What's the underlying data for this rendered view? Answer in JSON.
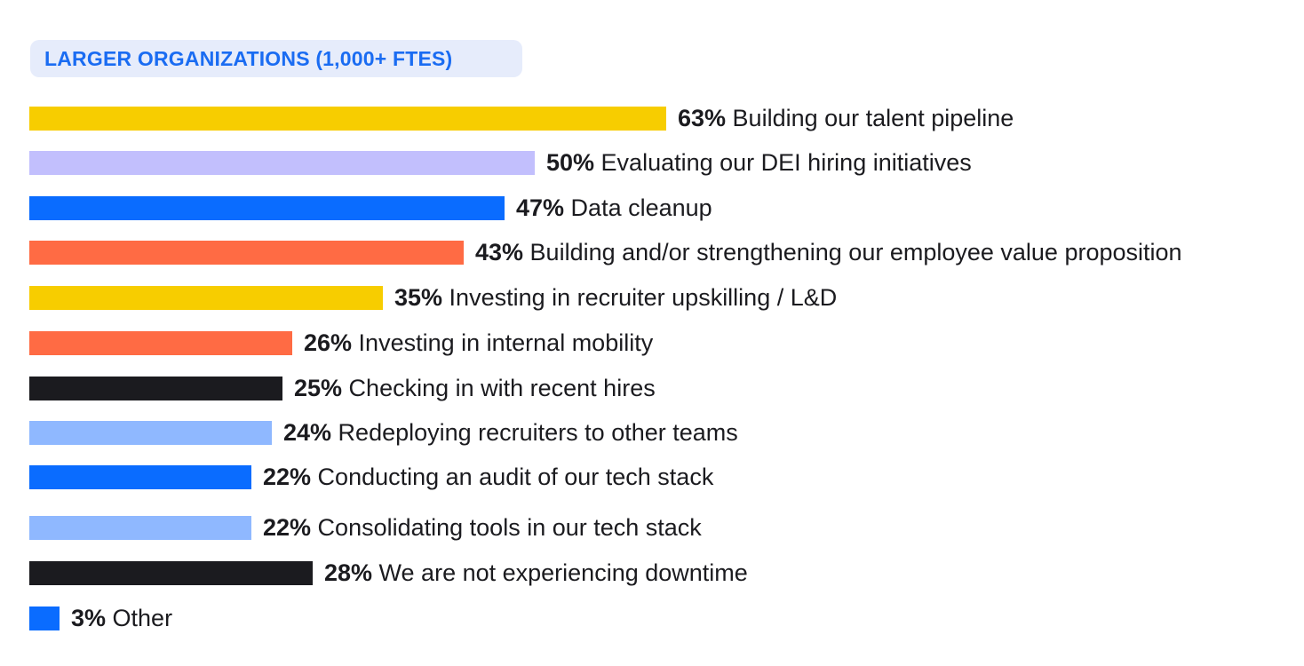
{
  "header": {
    "title": "LARGER ORGANIZATIONS (1,000+ FTES)",
    "background": "#e6ecfb",
    "text_color": "#1a6cf2"
  },
  "chart_data": {
    "type": "bar",
    "orientation": "horizontal",
    "title": "LARGER ORGANIZATIONS (1,000+ FTES)",
    "xlabel": "",
    "ylabel": "",
    "unit": "%",
    "categories": [
      "Building our talent pipeline",
      "Evaluating our DEI hiring initiatives",
      "Data cleanup",
      "Building and/or strengthening our employee value proposition",
      "Investing in recruiter upskilling / L&D",
      "Investing in internal mobility",
      "Checking in with recent hires",
      "Redeploying recruiters to other teams",
      "Conducting an audit of our tech stack",
      "Consolidating tools in our tech stack",
      "We are not experiencing downtime",
      "Other"
    ],
    "values": [
      63,
      50,
      47,
      43,
      35,
      26,
      25,
      24,
      22,
      22,
      28,
      3
    ],
    "value_labels": [
      "63%",
      "50%",
      "47%",
      "43%",
      "35%",
      "26%",
      "25%",
      "24%",
      "22%",
      "22%",
      "28%",
      "3%"
    ],
    "colors": [
      "#f7cd00",
      "#c2bffd",
      "#0a6cff",
      "#ff6b44",
      "#f7cd00",
      "#ff6b44",
      "#1b1b1f",
      "#8fb8ff",
      "#0a6cff",
      "#8fb8ff",
      "#1b1b1f",
      "#0a6cff"
    ],
    "grid": false,
    "legend": "none"
  }
}
